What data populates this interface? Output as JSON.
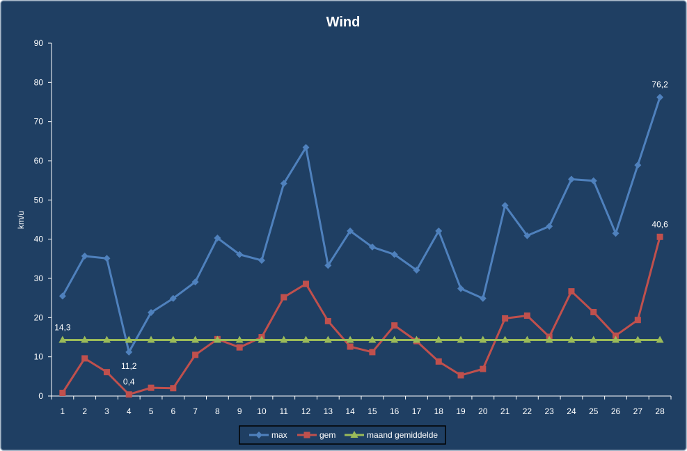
{
  "chart_data": {
    "type": "line",
    "title": "Wind",
    "ylabel": "km/u",
    "xlabel": "",
    "ylim": [
      0,
      90
    ],
    "yticks": [
      0,
      10,
      20,
      30,
      40,
      50,
      60,
      70,
      80,
      90
    ],
    "grid": false,
    "legend_position": "bottom",
    "categories": [
      "1",
      "2",
      "3",
      "4",
      "5",
      "6",
      "7",
      "8",
      "9",
      "10",
      "11",
      "12",
      "13",
      "14",
      "15",
      "16",
      "17",
      "18",
      "19",
      "20",
      "21",
      "22",
      "23",
      "24",
      "25",
      "26",
      "27",
      "28"
    ],
    "series": [
      {
        "name": "max",
        "color": "#4f81bd",
        "marker": "diamond",
        "values": [
          25.5,
          35.7,
          35.1,
          11.2,
          21.3,
          24.9,
          29.1,
          40.3,
          36.1,
          34.6,
          54.2,
          63.4,
          33.3,
          42.1,
          38.0,
          36.1,
          32.1,
          42.1,
          27.4,
          24.9,
          48.6,
          40.9,
          43.3,
          55.3,
          54.9,
          41.5,
          58.9,
          76.2
        ]
      },
      {
        "name": "gem",
        "color": "#c0504d",
        "marker": "square",
        "values": [
          0.8,
          9.6,
          6.1,
          0.4,
          2.1,
          2.0,
          10.5,
          14.5,
          12.4,
          15.0,
          25.2,
          28.6,
          19.1,
          12.6,
          11.2,
          18.0,
          14.0,
          8.8,
          5.3,
          6.9,
          19.8,
          20.5,
          15.1,
          26.7,
          21.4,
          15.4,
          19.4,
          40.6
        ]
      },
      {
        "name": "maand gemiddelde",
        "color": "#9bbb59",
        "marker": "triangle",
        "values": [
          14.3,
          14.3,
          14.3,
          14.3,
          14.3,
          14.3,
          14.3,
          14.3,
          14.3,
          14.3,
          14.3,
          14.3,
          14.3,
          14.3,
          14.3,
          14.3,
          14.3,
          14.3,
          14.3,
          14.3,
          14.3,
          14.3,
          14.3,
          14.3,
          14.3,
          14.3,
          14.3,
          14.3
        ]
      }
    ],
    "annotations": [
      {
        "series": 0,
        "index": 3,
        "text": "11,2",
        "position": "below"
      },
      {
        "series": 0,
        "index": 27,
        "text": "76,2",
        "position": "above"
      },
      {
        "series": 1,
        "index": 3,
        "text": "0,4",
        "position": "above"
      },
      {
        "series": 1,
        "index": 27,
        "text": "40,6",
        "position": "above"
      },
      {
        "series": 2,
        "index": 0,
        "text": "14,3",
        "position": "above"
      }
    ]
  },
  "colors": {
    "background": "#1f3f63",
    "frame": "#8fa3b8",
    "text": "#ffffff"
  }
}
